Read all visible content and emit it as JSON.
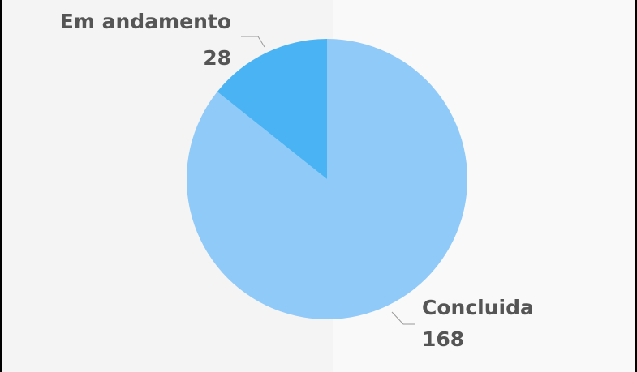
{
  "chart_data": {
    "type": "pie",
    "categories": [
      "Concluida",
      "Em andamento"
    ],
    "values": [
      168,
      28
    ],
    "colors": [
      "#90caf9",
      "#4ab3f4"
    ]
  }
}
